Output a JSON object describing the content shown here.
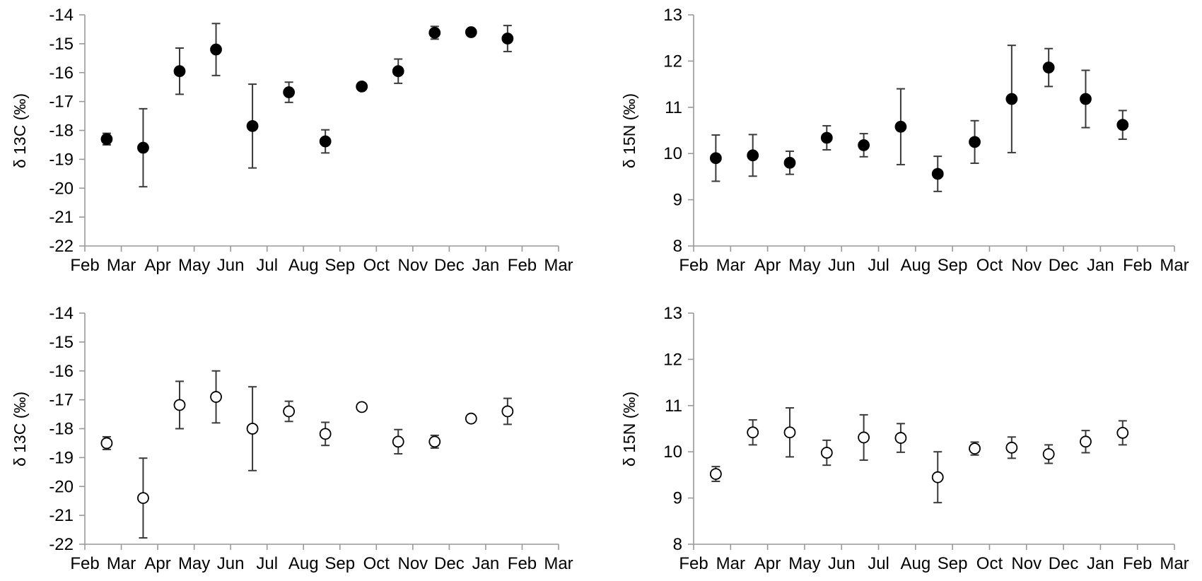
{
  "chart_data": [
    {
      "type": "scatter",
      "marker": "filled-circle",
      "ylabel": "δ 13C (‰)",
      "ylim": [
        -22,
        -14
      ],
      "yticks": [
        -14,
        -15,
        -16,
        -17,
        -18,
        -19,
        -20,
        -21,
        -22
      ],
      "months": [
        "Feb",
        "Mar",
        "Apr",
        "May",
        "Jun",
        "Jul",
        "Aug",
        "Sep",
        "Oct",
        "Nov",
        "Dec",
        "Jan",
        "Feb",
        "Mar"
      ],
      "points": [
        {
          "x": 0.6,
          "y": -18.3,
          "err": 0.2
        },
        {
          "x": 1.6,
          "y": -18.6,
          "err": 1.35
        },
        {
          "x": 2.6,
          "y": -15.95,
          "err": 0.8
        },
        {
          "x": 3.6,
          "y": -15.2,
          "err": 0.9
        },
        {
          "x": 4.6,
          "y": -17.85,
          "err": 1.45
        },
        {
          "x": 5.6,
          "y": -16.68,
          "err": 0.35
        },
        {
          "x": 6.6,
          "y": -18.38,
          "err": 0.4
        },
        {
          "x": 7.6,
          "y": -16.48,
          "err": 0.05
        },
        {
          "x": 8.6,
          "y": -15.95,
          "err": 0.42
        },
        {
          "x": 9.6,
          "y": -14.62,
          "err": 0.22
        },
        {
          "x": 10.6,
          "y": -14.6,
          "err": 0.08
        },
        {
          "x": 11.6,
          "y": -14.82,
          "err": 0.45
        }
      ]
    },
    {
      "type": "scatter",
      "marker": "filled-circle",
      "ylabel": "δ 15N (‰)",
      "ylim": [
        8,
        13
      ],
      "yticks": [
        13,
        12,
        11,
        10,
        9,
        8
      ],
      "months": [
        "Feb",
        "Mar",
        "Apr",
        "May",
        "Jun",
        "Jul",
        "Aug",
        "Sep",
        "Oct",
        "Nov",
        "Dec",
        "Jan",
        "Feb",
        "Mar"
      ],
      "points": [
        {
          "x": 0.6,
          "y": 9.9,
          "err": 0.5
        },
        {
          "x": 1.6,
          "y": 9.96,
          "err": 0.45
        },
        {
          "x": 2.6,
          "y": 9.8,
          "err": 0.25
        },
        {
          "x": 3.6,
          "y": 10.34,
          "err": 0.26
        },
        {
          "x": 4.6,
          "y": 10.18,
          "err": 0.25
        },
        {
          "x": 5.6,
          "y": 10.58,
          "err": 0.82
        },
        {
          "x": 6.6,
          "y": 9.56,
          "err": 0.38
        },
        {
          "x": 7.6,
          "y": 10.25,
          "err": 0.46
        },
        {
          "x": 8.6,
          "y": 11.18,
          "err": 1.16
        },
        {
          "x": 9.6,
          "y": 11.86,
          "err": 0.41
        },
        {
          "x": 10.6,
          "y": 11.18,
          "err": 0.62
        },
        {
          "x": 11.6,
          "y": 10.62,
          "err": 0.31
        }
      ]
    },
    {
      "type": "scatter",
      "marker": "open-circle",
      "ylabel": "δ 13C (‰)",
      "ylim": [
        -22,
        -14
      ],
      "yticks": [
        -14,
        -15,
        -16,
        -17,
        -18,
        -19,
        -20,
        -21,
        -22
      ],
      "months": [
        "Feb",
        "Mar",
        "Apr",
        "May",
        "Jun",
        "Jul",
        "Aug",
        "Sep",
        "Oct",
        "Nov",
        "Dec",
        "Jan",
        "Feb",
        "Mar"
      ],
      "points": [
        {
          "x": 0.6,
          "y": -18.5,
          "err": 0.22
        },
        {
          "x": 1.6,
          "y": -20.4,
          "err": 1.38
        },
        {
          "x": 2.6,
          "y": -17.18,
          "err": 0.82
        },
        {
          "x": 3.6,
          "y": -16.9,
          "err": 0.9
        },
        {
          "x": 4.6,
          "y": -18.0,
          "err": 1.45
        },
        {
          "x": 5.6,
          "y": -17.4,
          "err": 0.35
        },
        {
          "x": 6.6,
          "y": -18.18,
          "err": 0.4
        },
        {
          "x": 7.6,
          "y": -17.25,
          "err": 0.05
        },
        {
          "x": 8.6,
          "y": -18.45,
          "err": 0.42
        },
        {
          "x": 9.6,
          "y": -18.45,
          "err": 0.22
        },
        {
          "x": 10.6,
          "y": -17.65,
          "err": 0.05
        },
        {
          "x": 11.6,
          "y": -17.4,
          "err": 0.45
        }
      ]
    },
    {
      "type": "scatter",
      "marker": "open-circle",
      "ylabel": "δ 15N (‰)",
      "ylim": [
        8,
        13
      ],
      "yticks": [
        13,
        12,
        11,
        10,
        9,
        8
      ],
      "months": [
        "Feb",
        "Mar",
        "Apr",
        "May",
        "Jun",
        "Jul",
        "Aug",
        "Sep",
        "Oct",
        "Nov",
        "Dec",
        "Jan",
        "Feb",
        "Mar"
      ],
      "points": [
        {
          "x": 0.6,
          "y": 9.52,
          "err": 0.16
        },
        {
          "x": 1.6,
          "y": 10.42,
          "err": 0.27
        },
        {
          "x": 2.6,
          "y": 10.42,
          "err": 0.53
        },
        {
          "x": 3.6,
          "y": 9.98,
          "err": 0.27
        },
        {
          "x": 4.6,
          "y": 10.31,
          "err": 0.49
        },
        {
          "x": 5.6,
          "y": 10.3,
          "err": 0.31
        },
        {
          "x": 6.6,
          "y": 9.45,
          "err": 0.55
        },
        {
          "x": 7.6,
          "y": 10.07,
          "err": 0.14
        },
        {
          "x": 8.6,
          "y": 10.09,
          "err": 0.23
        },
        {
          "x": 9.6,
          "y": 9.95,
          "err": 0.2
        },
        {
          "x": 10.6,
          "y": 10.22,
          "err": 0.24
        },
        {
          "x": 11.6,
          "y": 10.41,
          "err": 0.26
        }
      ]
    }
  ]
}
